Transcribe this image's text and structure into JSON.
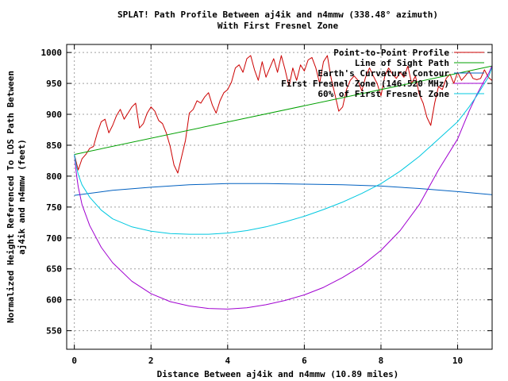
{
  "chart_data": {
    "type": "line",
    "title": "SPLAT! Path Profile Between aj4ik and n4mmw (338.48° azimuth)",
    "subtitle": "With First Fresnel Zone",
    "xlabel": "Distance Between aj4ik and n4mmw (10.89 miles)",
    "ylabel_line1": "Normalized Height Referenced To LOS Path Between",
    "ylabel_line2": "aj4ik and n4mmw (feet)",
    "xlim": [
      -0.2,
      10.9
    ],
    "ylim": [
      520,
      1013
    ],
    "x_ticks": [
      0,
      2,
      4,
      6,
      8,
      10
    ],
    "y_ticks": [
      550,
      600,
      650,
      700,
      750,
      800,
      850,
      900,
      950,
      1000
    ],
    "grid": true,
    "legend_position": "top-right",
    "colors": {
      "Point-to-Point Profile": "#cc0000",
      "Line of Sight Path": "#00a000",
      "Earth's Curvature Contour": "#0060c0",
      "First Fresnel Zone (146.520 MHz)": "#a000d0",
      "60% of First Fresnel Zone": "#00c8e0"
    },
    "series": [
      {
        "name": "Point-to-Point Profile",
        "x": [
          0,
          0.1,
          0.2,
          0.3,
          0.4,
          0.5,
          0.6,
          0.7,
          0.8,
          0.9,
          1.0,
          1.1,
          1.2,
          1.3,
          1.4,
          1.5,
          1.6,
          1.7,
          1.8,
          1.9,
          2.0,
          2.1,
          2.2,
          2.3,
          2.4,
          2.5,
          2.6,
          2.7,
          2.8,
          2.9,
          3.0,
          3.1,
          3.2,
          3.3,
          3.4,
          3.5,
          3.6,
          3.7,
          3.8,
          3.9,
          4.0,
          4.1,
          4.2,
          4.3,
          4.4,
          4.5,
          4.6,
          4.7,
          4.8,
          4.9,
          5.0,
          5.1,
          5.2,
          5.3,
          5.4,
          5.5,
          5.6,
          5.7,
          5.8,
          5.9,
          6.0,
          6.1,
          6.2,
          6.3,
          6.4,
          6.5,
          6.6,
          6.7,
          6.8,
          6.9,
          7.0,
          7.1,
          7.2,
          7.3,
          7.4,
          7.5,
          7.6,
          7.7,
          7.8,
          7.9,
          8.0,
          8.1,
          8.2,
          8.3,
          8.4,
          8.5,
          8.6,
          8.7,
          8.8,
          8.9,
          9.0,
          9.1,
          9.2,
          9.3,
          9.4,
          9.5,
          9.6,
          9.7,
          9.8,
          9.9,
          10.0,
          10.1,
          10.2,
          10.3,
          10.4,
          10.5,
          10.6,
          10.7,
          10.8,
          10.89
        ],
        "values": [
          835,
          810,
          828,
          835,
          845,
          848,
          870,
          888,
          892,
          870,
          882,
          898,
          908,
          892,
          902,
          912,
          918,
          878,
          885,
          902,
          912,
          905,
          890,
          885,
          870,
          848,
          818,
          805,
          832,
          858,
          902,
          908,
          922,
          918,
          928,
          935,
          915,
          902,
          922,
          935,
          940,
          952,
          975,
          980,
          968,
          990,
          995,
          972,
          955,
          985,
          960,
          975,
          990,
          968,
          995,
          972,
          945,
          975,
          955,
          980,
          970,
          988,
          992,
          975,
          950,
          985,
          995,
          958,
          932,
          905,
          912,
          940,
          955,
          962,
          955,
          938,
          960,
          975,
          962,
          950,
          930,
          962,
          975,
          965,
          958,
          968,
          960,
          978,
          950,
          962,
          932,
          918,
          895,
          882,
          918,
          945,
          940,
          958,
          965,
          950,
          968,
          955,
          962,
          970,
          958,
          956,
          958,
          972,
          960,
          955
        ]
      },
      {
        "name": "Line of Sight Path",
        "x": [
          0,
          10.89
        ],
        "values": [
          835,
          978
        ]
      },
      {
        "name": "Earth's Curvature Contour",
        "x": [
          0,
          1,
          2,
          3,
          4,
          4.5,
          5,
          6,
          7,
          8,
          9,
          10,
          10.89
        ],
        "values": [
          769,
          777,
          782,
          786,
          788,
          788,
          788,
          787,
          786,
          784,
          780,
          775,
          770
        ]
      },
      {
        "name": "First Fresnel Zone (146.520 MHz)",
        "x": [
          0,
          0.05,
          0.1,
          0.2,
          0.4,
          0.7,
          1.0,
          1.5,
          2.0,
          2.5,
          3.0,
          3.5,
          4.0,
          4.5,
          5.0,
          5.5,
          6.0,
          6.5,
          7.0,
          7.5,
          8.0,
          8.5,
          9.0,
          9.5,
          10.0,
          10.3,
          10.5,
          10.7,
          10.8,
          10.85,
          10.89
        ],
        "values": [
          835,
          805,
          783,
          754,
          720,
          685,
          660,
          630,
          610,
          597,
          590,
          586,
          585,
          587,
          592,
          599,
          608,
          620,
          636,
          655,
          680,
          712,
          754,
          810,
          860,
          905,
          932,
          955,
          965,
          972,
          978
        ]
      },
      {
        "name": "60% of First Fresnel Zone",
        "x": [
          0,
          0.05,
          0.1,
          0.2,
          0.4,
          0.7,
          1.0,
          1.5,
          2.0,
          2.5,
          3.0,
          3.5,
          4.0,
          4.5,
          5.0,
          5.5,
          6.0,
          6.5,
          7.0,
          7.5,
          8.0,
          8.5,
          9.0,
          9.5,
          10.0,
          10.3,
          10.5,
          10.7,
          10.8,
          10.85,
          10.89
        ],
        "values": [
          835,
          817,
          803,
          786,
          766,
          745,
          731,
          718,
          711,
          707,
          706,
          706,
          708,
          712,
          718,
          726,
          735,
          746,
          758,
          772,
          788,
          808,
          832,
          860,
          888,
          912,
          930,
          950,
          960,
          968,
          975
        ]
      }
    ]
  }
}
